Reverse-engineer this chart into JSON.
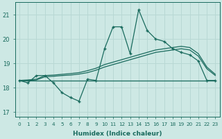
{
  "xlabel": "Humidex (Indice chaleur)",
  "xlim": [
    -0.5,
    23.5
  ],
  "ylim": [
    16.8,
    21.5
  ],
  "yticks": [
    17,
    18,
    19,
    20,
    21
  ],
  "xticks": [
    0,
    1,
    2,
    3,
    4,
    5,
    6,
    7,
    8,
    9,
    10,
    11,
    12,
    13,
    14,
    15,
    16,
    17,
    18,
    19,
    20,
    21,
    22,
    23
  ],
  "bg_color": "#cde8e4",
  "line_color": "#1a6b5e",
  "grid_color": "#b8d8d4",
  "line_main": [
    18.3,
    18.2,
    18.5,
    18.5,
    18.2,
    17.8,
    17.6,
    17.45,
    18.35,
    18.3,
    19.6,
    20.5,
    20.5,
    19.4,
    21.2,
    20.35,
    20.0,
    19.9,
    19.6,
    19.45,
    19.35,
    19.1,
    18.3,
    18.3
  ],
  "line_flat": [
    18.3,
    18.3,
    18.3,
    18.3,
    18.3,
    18.3,
    18.3,
    18.3,
    18.3,
    18.3,
    18.3,
    18.3,
    18.3,
    18.3,
    18.3,
    18.3,
    18.3,
    18.3,
    18.3,
    18.3,
    18.3,
    18.3,
    18.3,
    18.3
  ],
  "line_trend1": [
    18.3,
    18.32,
    18.35,
    18.5,
    18.52,
    18.55,
    18.58,
    18.62,
    18.7,
    18.8,
    18.95,
    19.05,
    19.15,
    19.25,
    19.35,
    19.45,
    19.55,
    19.6,
    19.65,
    19.7,
    19.65,
    19.4,
    18.85,
    18.55
  ],
  "line_trend2": [
    18.3,
    18.3,
    18.32,
    18.45,
    18.47,
    18.5,
    18.52,
    18.56,
    18.62,
    18.72,
    18.85,
    18.95,
    19.05,
    19.15,
    19.25,
    19.35,
    19.45,
    19.5,
    19.55,
    19.6,
    19.55,
    19.3,
    18.78,
    18.5
  ]
}
